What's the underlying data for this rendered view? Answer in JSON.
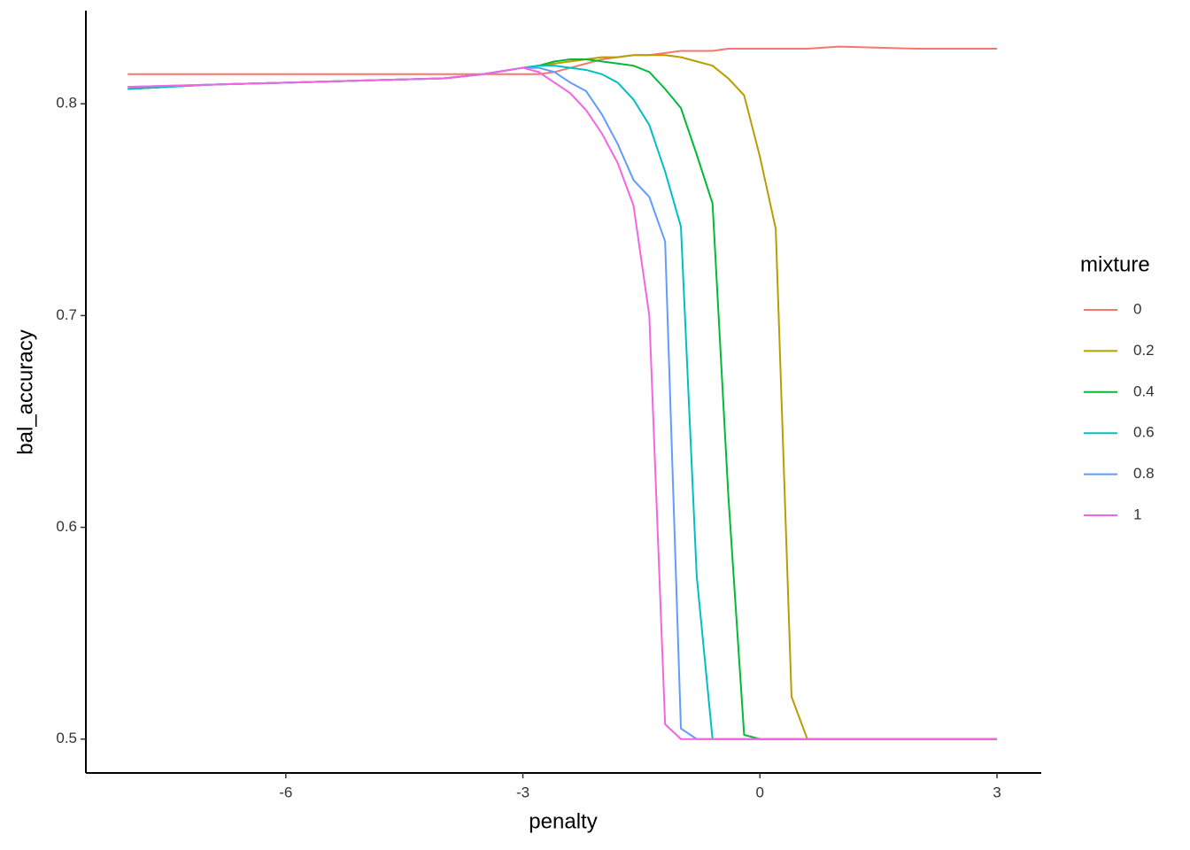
{
  "chart_data": {
    "type": "line",
    "x_label": "penalty",
    "y_label": "bal_accuracy",
    "legend_title": "mixture",
    "legend": "right",
    "x": [
      -8,
      -7,
      -6,
      -5,
      -4,
      -3.5,
      -3,
      -2.8,
      -2.6,
      -2.4,
      -2.2,
      -2,
      -1.8,
      -1.6,
      -1.4,
      -1.2,
      -1,
      -0.8,
      -0.6,
      -0.4,
      -0.2,
      0,
      0.2,
      0.4,
      0.6,
      1,
      2,
      3
    ],
    "xlim": [
      -8.53,
      3.56
    ],
    "xticks": [
      -6,
      -3,
      0,
      3
    ],
    "ylim": [
      0.484,
      0.844
    ],
    "yticks": [
      0.5,
      0.6,
      0.7,
      0.8
    ],
    "series": [
      {
        "name": "0",
        "color": "#F8766D",
        "values": [
          0.814,
          0.814,
          0.814,
          0.814,
          0.814,
          0.814,
          0.814,
          0.814,
          0.815,
          0.817,
          0.819,
          0.821,
          0.822,
          0.823,
          0.823,
          0.824,
          0.825,
          0.825,
          0.825,
          0.826,
          0.826,
          0.826,
          0.826,
          0.826,
          0.826,
          0.827,
          0.826,
          0.826
        ]
      },
      {
        "name": "0.2",
        "color": "#B79F00",
        "values": [
          0.807,
          0.809,
          0.81,
          0.811,
          0.812,
          0.814,
          0.817,
          0.818,
          0.819,
          0.82,
          0.821,
          0.822,
          0.822,
          0.823,
          0.823,
          0.823,
          0.822,
          0.82,
          0.818,
          0.812,
          0.804,
          0.775,
          0.741,
          0.52,
          0.5,
          0.5,
          0.5,
          0.5
        ]
      },
      {
        "name": "0.4",
        "color": "#00BA38",
        "values": [
          0.807,
          0.809,
          0.81,
          0.811,
          0.812,
          0.814,
          0.817,
          0.818,
          0.82,
          0.821,
          0.821,
          0.82,
          0.819,
          0.818,
          0.815,
          0.807,
          0.798,
          0.776,
          0.753,
          0.615,
          0.502,
          0.5,
          0.5,
          0.5,
          0.5,
          0.5,
          0.5,
          0.5
        ]
      },
      {
        "name": "0.6",
        "color": "#00BFC4",
        "values": [
          0.807,
          0.809,
          0.81,
          0.811,
          0.812,
          0.814,
          0.817,
          0.818,
          0.818,
          0.817,
          0.816,
          0.814,
          0.81,
          0.802,
          0.79,
          0.768,
          0.742,
          0.577,
          0.5,
          0.5,
          0.5,
          0.5,
          0.5,
          0.5,
          0.5,
          0.5,
          0.5,
          0.5
        ]
      },
      {
        "name": "0.8",
        "color": "#619CFF",
        "values": [
          0.808,
          0.809,
          0.81,
          0.811,
          0.812,
          0.814,
          0.817,
          0.817,
          0.815,
          0.81,
          0.806,
          0.795,
          0.781,
          0.764,
          0.756,
          0.735,
          0.505,
          0.5,
          0.5,
          0.5,
          0.5,
          0.5,
          0.5,
          0.5,
          0.5,
          0.5,
          0.5,
          0.5
        ]
      },
      {
        "name": "1",
        "color": "#F564E3",
        "values": [
          0.808,
          0.809,
          0.81,
          0.811,
          0.812,
          0.814,
          0.817,
          0.815,
          0.81,
          0.805,
          0.797,
          0.786,
          0.772,
          0.752,
          0.7,
          0.507,
          0.5,
          0.5,
          0.5,
          0.5,
          0.5,
          0.5,
          0.5,
          0.5,
          0.5,
          0.5,
          0.5,
          0.5
        ]
      }
    ]
  }
}
